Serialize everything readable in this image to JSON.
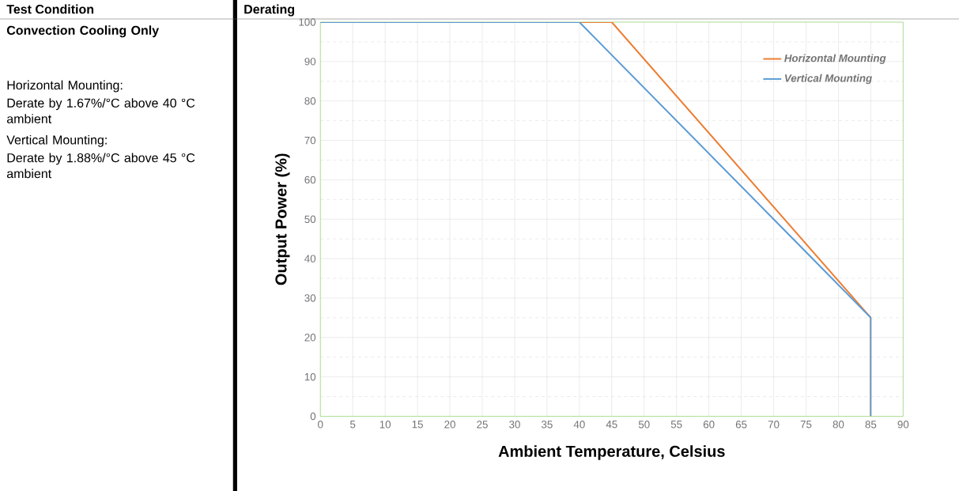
{
  "chart_data": {
    "type": "line",
    "title": "Derating",
    "xlabel": "Ambient Temperature, Celsius",
    "ylabel": "Output Power (%)",
    "annotations": [
      "Test Condition",
      "Convection Cooling Only",
      "Horizontal Mounting:",
      "Derate by 1.67%/°C above 40 °C ambient",
      "Vertical Mounting:",
      "Derate by 1.88%/°C above 45 °C ambient"
    ],
    "series": [
      {
        "name": "Horizontal Mounting",
        "color": "#ed7d31",
        "x": [
          0,
          45,
          85,
          85
        ],
        "values": [
          100,
          100,
          25,
          0
        ]
      },
      {
        "name": "Vertical Mounting",
        "color": "#5b9bd5",
        "x": [
          0,
          40,
          85,
          85
        ],
        "values": [
          100,
          100,
          25,
          0
        ]
      }
    ],
    "xlim": [
      0,
      90
    ],
    "xticks": [
      0,
      5,
      10,
      15,
      20,
      25,
      30,
      35,
      40,
      45,
      50,
      55,
      60,
      65,
      70,
      75,
      80,
      85,
      90
    ],
    "ylim": [
      0,
      100
    ],
    "yticks": [
      0,
      10,
      20,
      30,
      40,
      50,
      60,
      70,
      80,
      90,
      100
    ],
    "grid": true,
    "legend": "top right",
    "marker": "none",
    "line_style": "solid"
  }
}
